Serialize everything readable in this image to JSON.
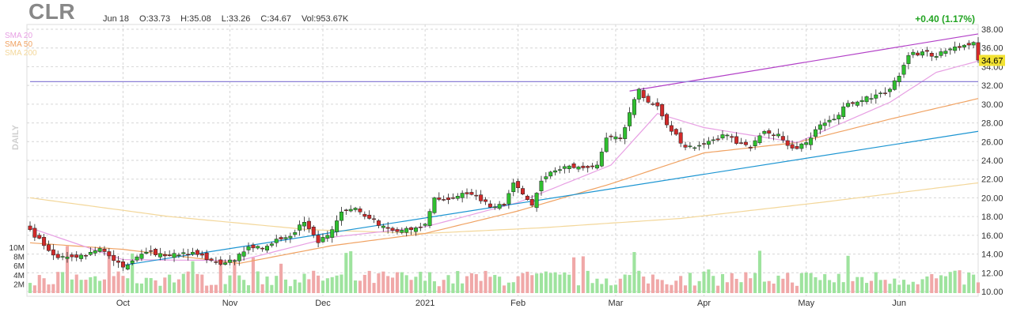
{
  "header": {
    "ticker": "CLR",
    "date": "Jun 18",
    "open": "O:33.73",
    "high": "H:35.08",
    "low": "L:33.26",
    "close": "C:34.67",
    "volume": "Vol:953.67K",
    "change": "+0.40 (1.17%)"
  },
  "interval_label": "DAILY",
  "colors": {
    "up": "#2fbf2f",
    "down": "#d12a2a",
    "sma20": "#e79fe3",
    "sma50": "#f0a262",
    "sma200": "#f3d79a",
    "volume_up": "#9ee39e",
    "volume_down": "#f0a8a8"
  },
  "chart_data": {
    "type": "candlestick",
    "title": "CLR",
    "ylim": [
      10,
      38
    ],
    "y_ticks": [
      "38.00",
      "36.00",
      "34.00",
      "32.00",
      "30.00",
      "28.00",
      "26.00",
      "24.00",
      "22.00",
      "20.00",
      "18.00",
      "16.00",
      "14.00",
      "12.00",
      "10.00"
    ],
    "x_labels": [
      "Oct",
      "Nov",
      "Dec",
      "2021",
      "Feb",
      "Mar",
      "Apr",
      "May",
      "Jun"
    ],
    "x_label_bar_index": [
      20,
      43,
      63,
      85,
      105,
      126,
      145,
      167,
      187
    ],
    "volume_ticks": [
      "10M",
      "8M",
      "6M",
      "4M",
      "2M"
    ],
    "volume_max_m": 12,
    "last_price_label": "34.67",
    "legend": [
      {
        "name": "SMA 20",
        "color": "#e79fe3"
      },
      {
        "name": "SMA 50",
        "color": "#f0a262"
      },
      {
        "name": "SMA 200",
        "color": "#f3d79a"
      }
    ],
    "anchors": [
      {
        "i": 0,
        "c": 16.6
      },
      {
        "i": 3,
        "c": 14.9
      },
      {
        "i": 6,
        "c": 13.6
      },
      {
        "i": 9,
        "c": 13.7
      },
      {
        "i": 12,
        "c": 13.8
      },
      {
        "i": 15,
        "c": 14.6
      },
      {
        "i": 18,
        "c": 13.3
      },
      {
        "i": 20,
        "c": 12.6
      },
      {
        "i": 23,
        "c": 13.7
      },
      {
        "i": 26,
        "c": 14.3
      },
      {
        "i": 29,
        "c": 13.8
      },
      {
        "i": 32,
        "c": 13.9
      },
      {
        "i": 35,
        "c": 14.2
      },
      {
        "i": 38,
        "c": 13.4
      },
      {
        "i": 41,
        "c": 12.9
      },
      {
        "i": 44,
        "c": 13.3
      },
      {
        "i": 47,
        "c": 14.8
      },
      {
        "i": 50,
        "c": 14.6
      },
      {
        "i": 53,
        "c": 15.6
      },
      {
        "i": 56,
        "c": 15.9
      },
      {
        "i": 59,
        "c": 17.4
      },
      {
        "i": 62,
        "c": 15.2
      },
      {
        "i": 64,
        "c": 16.0
      },
      {
        "i": 67,
        "c": 18.5
      },
      {
        "i": 70,
        "c": 18.9
      },
      {
        "i": 73,
        "c": 17.8
      },
      {
        "i": 76,
        "c": 17.0
      },
      {
        "i": 79,
        "c": 16.4
      },
      {
        "i": 82,
        "c": 16.6
      },
      {
        "i": 85,
        "c": 17.2
      },
      {
        "i": 87,
        "c": 20.0
      },
      {
        "i": 90,
        "c": 19.8
      },
      {
        "i": 93,
        "c": 20.5
      },
      {
        "i": 96,
        "c": 20.2
      },
      {
        "i": 99,
        "c": 19.0
      },
      {
        "i": 102,
        "c": 19.2
      },
      {
        "i": 104,
        "c": 21.6
      },
      {
        "i": 106,
        "c": 20.4
      },
      {
        "i": 108,
        "c": 19.2
      },
      {
        "i": 110,
        "c": 21.8
      },
      {
        "i": 113,
        "c": 22.9
      },
      {
        "i": 116,
        "c": 23.4
      },
      {
        "i": 119,
        "c": 23.2
      },
      {
        "i": 122,
        "c": 23.5
      },
      {
        "i": 124,
        "c": 26.4
      },
      {
        "i": 127,
        "c": 26.3
      },
      {
        "i": 129,
        "c": 29.1
      },
      {
        "i": 131,
        "c": 31.6
      },
      {
        "i": 133,
        "c": 30.2
      },
      {
        "i": 135,
        "c": 29.8
      },
      {
        "i": 138,
        "c": 27.1
      },
      {
        "i": 141,
        "c": 25.4
      },
      {
        "i": 144,
        "c": 25.6
      },
      {
        "i": 147,
        "c": 26.2
      },
      {
        "i": 150,
        "c": 26.7
      },
      {
        "i": 152,
        "c": 25.8
      },
      {
        "i": 155,
        "c": 25.3
      },
      {
        "i": 158,
        "c": 27.1
      },
      {
        "i": 161,
        "c": 26.8
      },
      {
        "i": 164,
        "c": 25.3
      },
      {
        "i": 167,
        "c": 25.9
      },
      {
        "i": 170,
        "c": 27.8
      },
      {
        "i": 173,
        "c": 28.4
      },
      {
        "i": 176,
        "c": 30.1
      },
      {
        "i": 179,
        "c": 30.4
      },
      {
        "i": 182,
        "c": 31.0
      },
      {
        "i": 185,
        "c": 31.6
      },
      {
        "i": 187,
        "c": 33.0
      },
      {
        "i": 189,
        "c": 35.2
      },
      {
        "i": 192,
        "c": 35.6
      },
      {
        "i": 195,
        "c": 35.1
      },
      {
        "i": 198,
        "c": 35.9
      },
      {
        "i": 201,
        "c": 36.3
      },
      {
        "i": 203,
        "c": 36.6
      },
      {
        "i": 204,
        "c": 34.7
      }
    ],
    "sma20": [
      [
        0,
        16.8
      ],
      [
        20,
        13.4
      ],
      [
        45,
        13.3
      ],
      [
        65,
        15.8
      ],
      [
        85,
        16.9
      ],
      [
        105,
        19.5
      ],
      [
        125,
        23.5
      ],
      [
        135,
        29.0
      ],
      [
        145,
        27.5
      ],
      [
        165,
        25.9
      ],
      [
        185,
        30.2
      ],
      [
        195,
        33.4
      ],
      [
        204,
        34.6
      ]
    ],
    "sma50": [
      [
        0,
        15.2
      ],
      [
        20,
        14.5
      ],
      [
        45,
        13.0
      ],
      [
        65,
        14.9
      ],
      [
        85,
        16.2
      ],
      [
        105,
        18.6
      ],
      [
        125,
        21.5
      ],
      [
        145,
        24.8
      ],
      [
        165,
        25.9
      ],
      [
        185,
        28.4
      ],
      [
        204,
        30.6
      ]
    ],
    "sma200": [
      [
        0,
        20.0
      ],
      [
        30,
        18.0
      ],
      [
        60,
        16.6
      ],
      [
        85,
        16.2
      ],
      [
        110,
        16.8
      ],
      [
        140,
        17.8
      ],
      [
        170,
        19.5
      ],
      [
        204,
        21.6
      ]
    ],
    "trendlines": [
      {
        "name": "resistance",
        "color": "#b23fc7",
        "from": [
          129,
          31.4
        ],
        "to": [
          204,
          37.5
        ]
      },
      {
        "name": "support",
        "color": "#1c95d2",
        "from": [
          20,
          12.8
        ],
        "to": [
          204,
          27.1
        ]
      },
      {
        "name": "horizontal",
        "color": "#8a7fd6",
        "from": [
          0,
          32.4
        ],
        "to": [
          204,
          32.4
        ]
      }
    ]
  }
}
